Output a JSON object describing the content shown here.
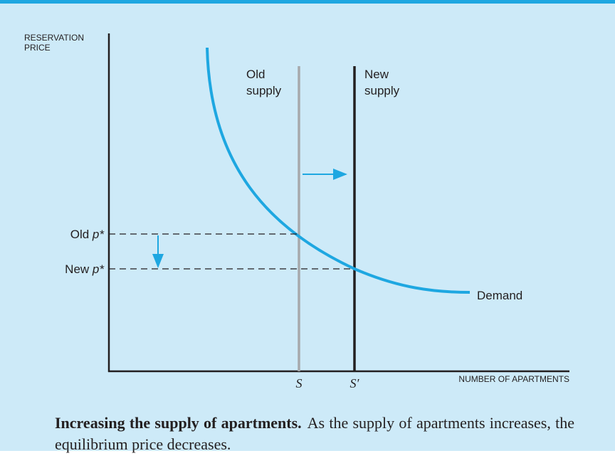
{
  "axes": {
    "y_label_lines": [
      "RESERVATION",
      "PRICE"
    ],
    "x_label": "NUMBER OF APARTMENTS"
  },
  "curves": {
    "demand": "Demand",
    "old_supply": [
      "Old",
      "supply"
    ],
    "new_supply": [
      "New",
      "supply"
    ]
  },
  "prices": {
    "old": {
      "word": "Old",
      "symbol": "p*"
    },
    "new": {
      "word": "New",
      "symbol": "p*"
    }
  },
  "quantities": {
    "old": "S",
    "new": "S′"
  },
  "caption": {
    "title": "Increasing the supply of apartments.",
    "text": "As the supply of apartments increases, the equilibrium price decreases."
  }
}
